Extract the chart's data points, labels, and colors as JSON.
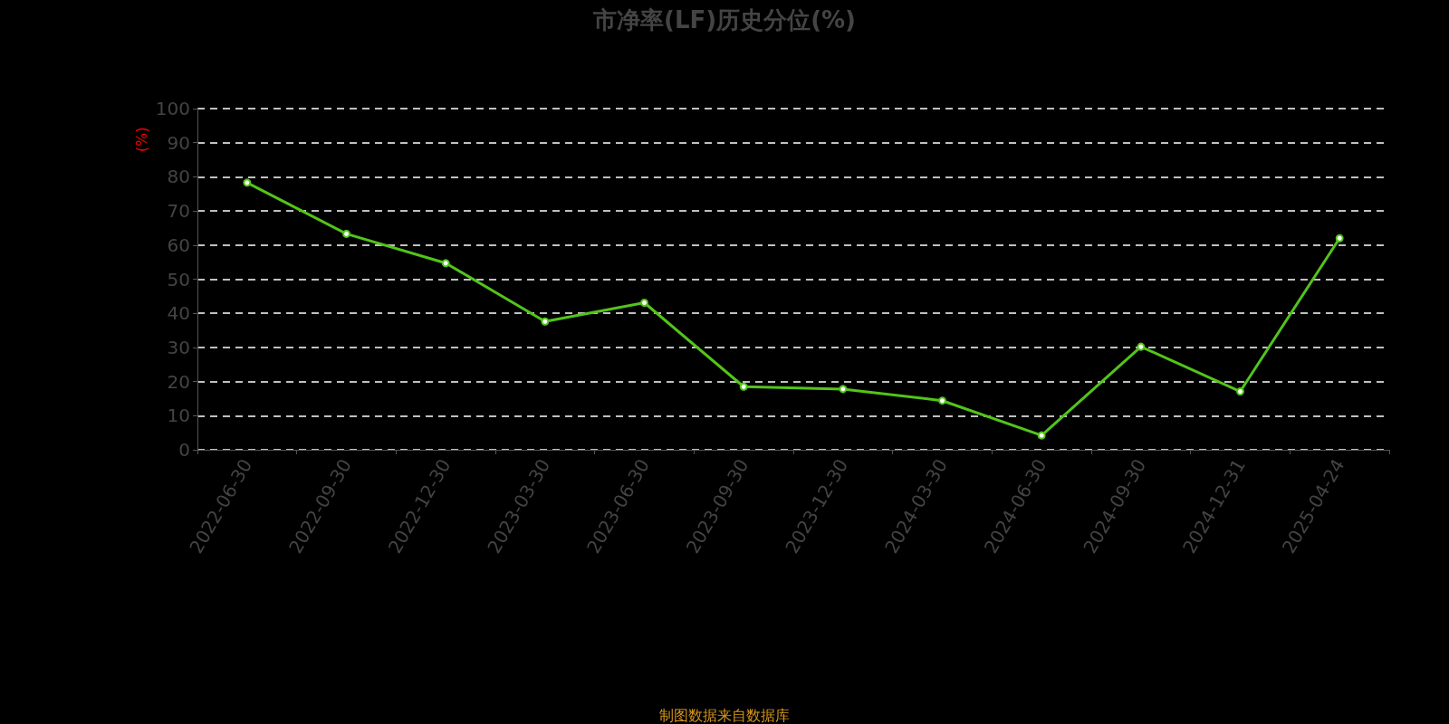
{
  "chart_data": {
    "type": "line",
    "title": "市净率(LF)历史分位(%)",
    "ylabel": "(%)",
    "categories": [
      "2022-06-30",
      "2022-09-30",
      "2022-12-30",
      "2023-03-30",
      "2023-06-30",
      "2023-09-30",
      "2023-12-30",
      "2024-03-30",
      "2024-06-30",
      "2024-09-30",
      "2024-12-31",
      "2025-04-24"
    ],
    "series": [
      {
        "color": "#52c41a",
        "values": [
          78.3,
          63.3,
          54.7,
          37.6,
          43.1,
          18.5,
          17.8,
          14.4,
          4.2,
          30.2,
          17.1,
          62.0
        ]
      }
    ],
    "ylim": [
      0,
      100
    ],
    "yticks": [
      0,
      10,
      20,
      30,
      40,
      50,
      60,
      70,
      80,
      90,
      100
    ],
    "grid": "y",
    "marker": "circle",
    "line_style": "solid",
    "annotations": [
      "制图数据来自数据库"
    ]
  }
}
